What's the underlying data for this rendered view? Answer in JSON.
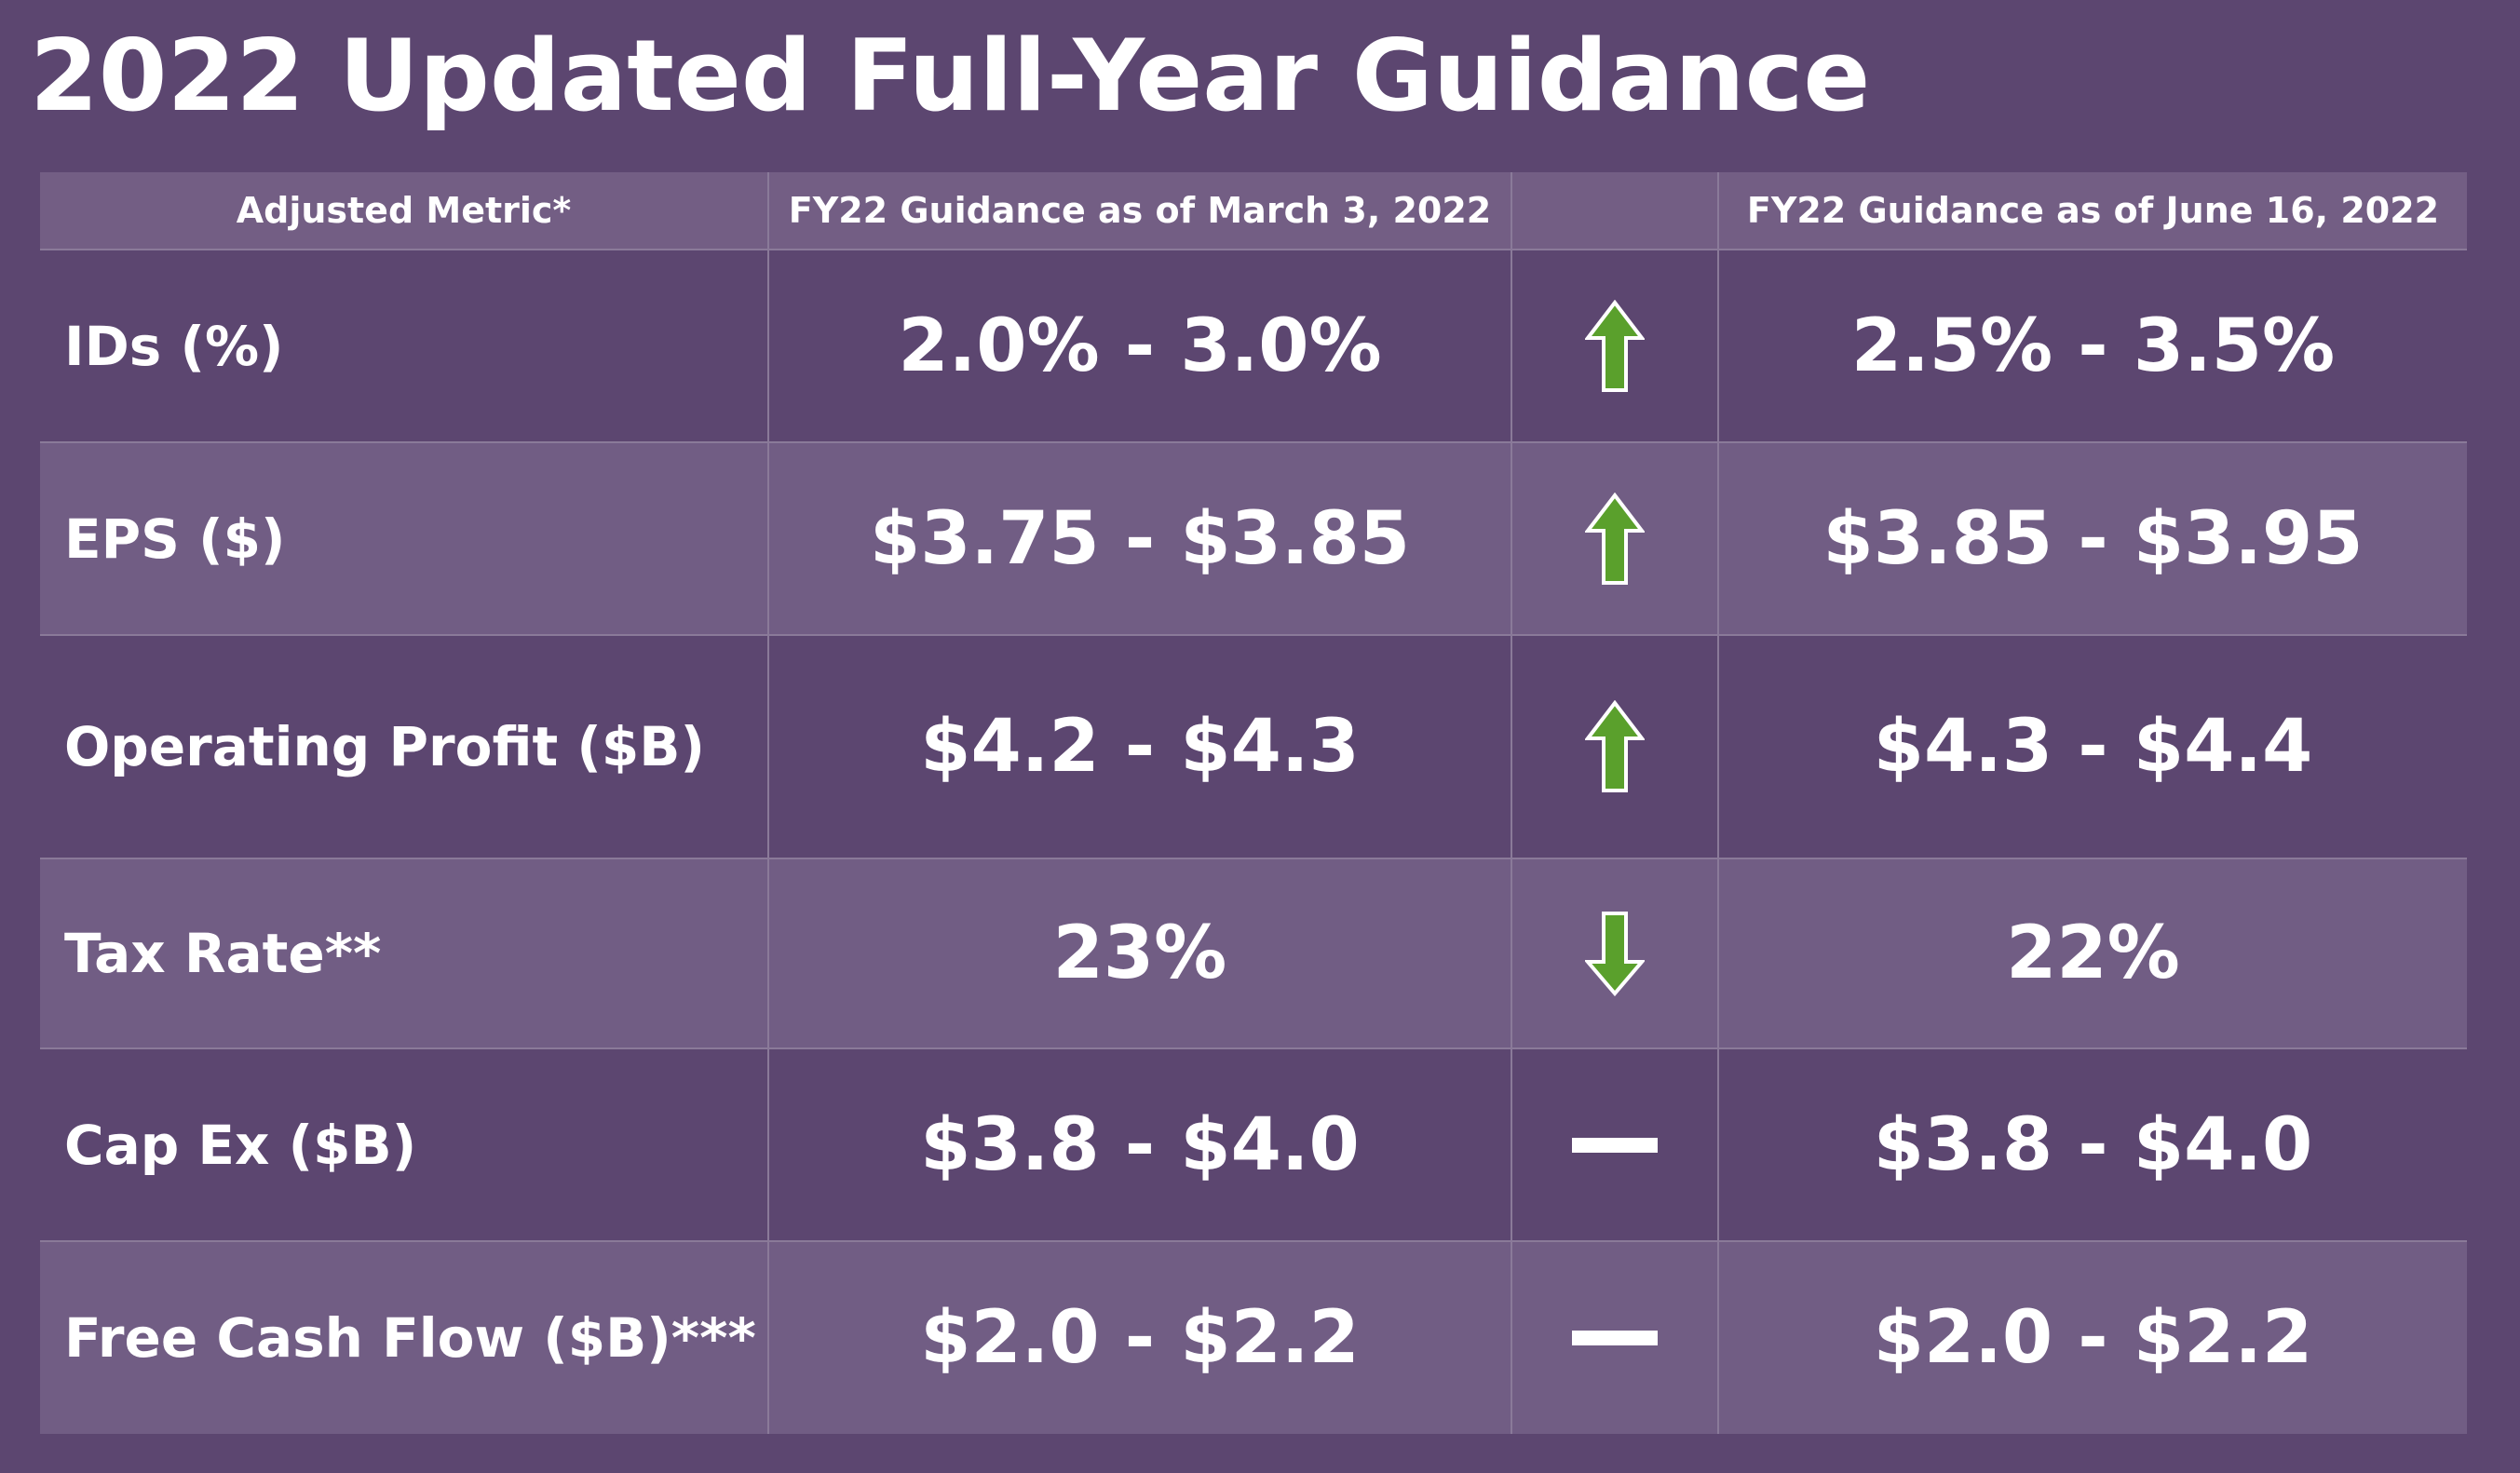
{
  "title": "2022 Updated Full-Year Guidance",
  "table": {
    "headers": {
      "metric": "Adjusted Metric*",
      "march": "FY22 Guidance as of March 3, 2022",
      "change": "",
      "june": "FY22 Guidance as of June 16, 2022"
    },
    "rows": [
      {
        "metric": "IDs (%)",
        "march": "2.0% - 3.0%",
        "change": "up-arrow-icon",
        "june": "2.5% - 3.5%"
      },
      {
        "metric": "EPS ($)",
        "march": "$3.75 - $3.85",
        "change": "up-arrow-icon",
        "june": "$3.85 - $3.95"
      },
      {
        "metric": "Operating Profit ($B)",
        "march": "$4.2 - $4.3",
        "change": "up-arrow-icon",
        "june": "$4.3 - $4.4"
      },
      {
        "metric": "Tax Rate**",
        "march": "23%",
        "change": "down-arrow-icon",
        "june": "22%"
      },
      {
        "metric": "Cap Ex ($B)",
        "march": "$3.8 - $4.0",
        "change": "dash-icon",
        "june": "$3.8 - $4.0"
      },
      {
        "metric": "Free Cash Flow ($B)***",
        "march": "$2.0 - $2.2",
        "change": "dash-icon",
        "june": "$2.0 - $2.2"
      }
    ]
  },
  "colors": {
    "background": "#5c4670",
    "header_row": "#735e84",
    "row_alt": "#715d84",
    "arrow_green": "#5aa02c",
    "text": "#ffffff"
  }
}
